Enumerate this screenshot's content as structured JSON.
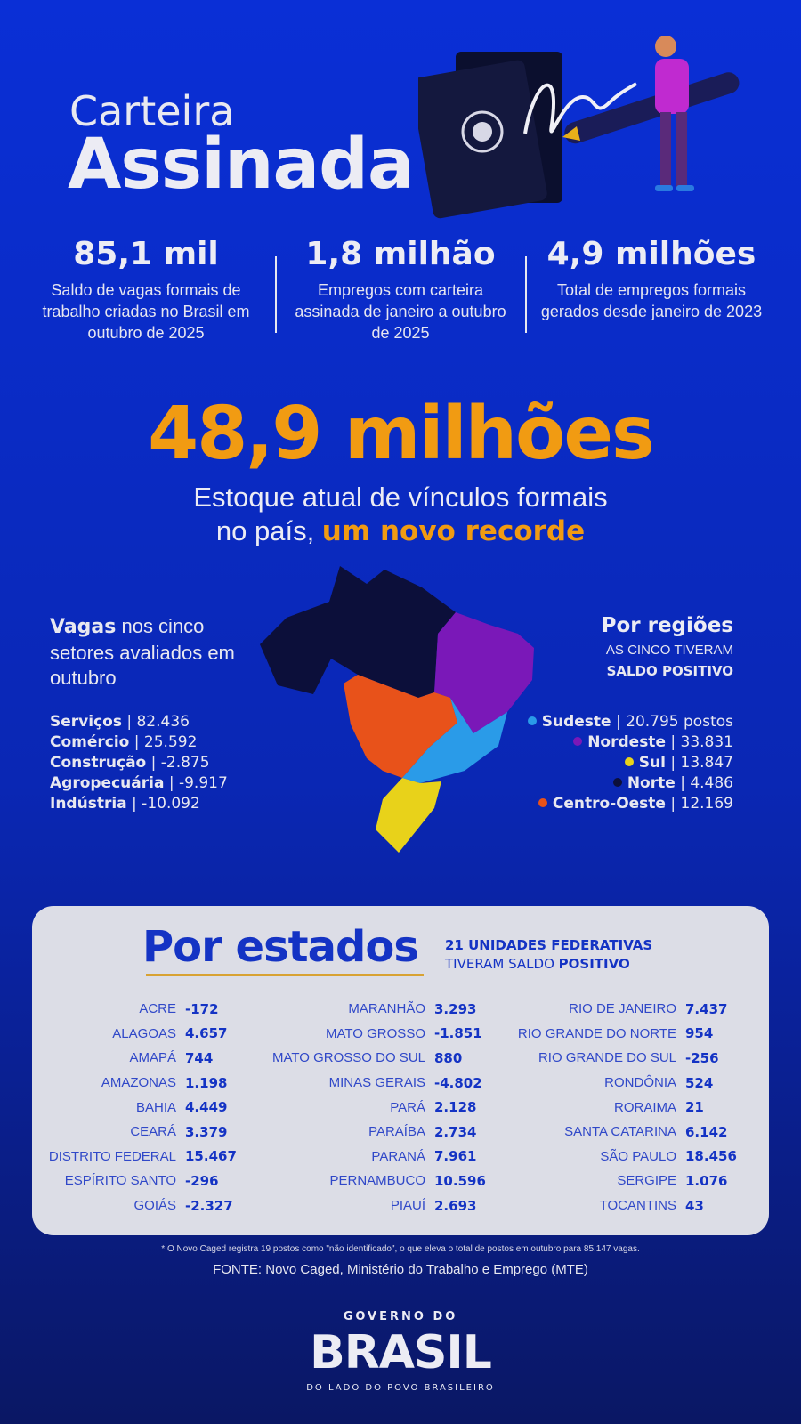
{
  "header": {
    "title_line1": "Carteira",
    "title_line2": "Assinada"
  },
  "stats": [
    {
      "value": "85,1 mil",
      "desc": "Saldo de vagas formais de trabalho criadas no Brasil em outubro de 2025"
    },
    {
      "value": "1,8 milhão",
      "desc": "Empregos com carteira assinada de janeiro a outubro de 2025"
    },
    {
      "value": "4,9 milhões",
      "desc": "Total de empregos formais gerados desde janeiro de 2023"
    }
  ],
  "headline": {
    "value": "48,9 milhões",
    "desc_line1": "Estoque atual de vínculos formais",
    "desc_line2_plain": "no país, ",
    "desc_line2_highlight": "um novo recorde"
  },
  "sectors": {
    "title_bold": "Vagas",
    "title_rest": " nos cinco setores avaliados em outubro",
    "items": [
      {
        "name": "Serviços",
        "value": "| 82.436"
      },
      {
        "name": "Comércio",
        "value": "| 25.592"
      },
      {
        "name": "Construção",
        "value": "| -2.875"
      },
      {
        "name": "Agropecuária",
        "value": "| -9.917"
      },
      {
        "name": "Indústria",
        "value": "| -10.092"
      }
    ]
  },
  "regions": {
    "title": "Por regiões",
    "subtitle1": "AS CINCO TIVERAM",
    "subtitle2": "SALDO POSITIVO",
    "items": [
      {
        "name": "Sudeste",
        "value": "| 20.795 postos",
        "color": "#2a9be8"
      },
      {
        "name": "Nordeste",
        "value": "| 33.831",
        "color": "#7a18b8"
      },
      {
        "name": "Sul",
        "value": "| 13.847",
        "color": "#e8d21a"
      },
      {
        "name": "Norte",
        "value": "| 4.486",
        "color": "#0c0f3a"
      },
      {
        "name": "Centro-Oeste",
        "value": "| 12.169",
        "color": "#e8521a"
      }
    ]
  },
  "states_card": {
    "title": "Por estados",
    "subtitle_line1": "21 UNIDADES FEDERATIVAS",
    "subtitle_line2_plain": "TIVERAM SALDO ",
    "subtitle_line2_bold": "POSITIVO",
    "columns": [
      [
        {
          "name": "ACRE",
          "value": "-172"
        },
        {
          "name": "ALAGOAS",
          "value": "4.657"
        },
        {
          "name": "AMAPÁ",
          "value": "744"
        },
        {
          "name": "AMAZONAS",
          "value": "1.198"
        },
        {
          "name": "BAHIA",
          "value": "4.449"
        },
        {
          "name": "CEARÁ",
          "value": "3.379"
        },
        {
          "name": "DISTRITO FEDERAL",
          "value": "15.467"
        },
        {
          "name": "ESPÍRITO SANTO",
          "value": "-296"
        },
        {
          "name": "GOIÁS",
          "value": "-2.327"
        }
      ],
      [
        {
          "name": "MARANHÃO",
          "value": "3.293"
        },
        {
          "name": "MATO GROSSO",
          "value": "-1.851"
        },
        {
          "name": "MATO GROSSO DO SUL",
          "value": "880"
        },
        {
          "name": "MINAS GERAIS",
          "value": "-4.802"
        },
        {
          "name": "PARÁ",
          "value": "2.128"
        },
        {
          "name": "PARAÍBA",
          "value": "2.734"
        },
        {
          "name": "PARANÁ",
          "value": "7.961"
        },
        {
          "name": "PERNAMBUCO",
          "value": "10.596"
        },
        {
          "name": "PIAUÍ",
          "value": "2.693"
        }
      ],
      [
        {
          "name": "RIO DE JANEIRO",
          "value": "7.437"
        },
        {
          "name": "RIO GRANDE DO NORTE",
          "value": "954"
        },
        {
          "name": "RIO GRANDE DO SUL",
          "value": "-256"
        },
        {
          "name": "RONDÔNIA",
          "value": "524"
        },
        {
          "name": "RORAIMA",
          "value": "21"
        },
        {
          "name": "SANTA CATARINA",
          "value": "6.142"
        },
        {
          "name": "SÃO PAULO",
          "value": "18.456"
        },
        {
          "name": "SERGIPE",
          "value": "1.076"
        },
        {
          "name": "TOCANTINS",
          "value": "43"
        }
      ]
    ]
  },
  "footnote": "* O Novo Caged registra 19 postos como \"não identificado\", o que eleva o total de postos em outubro para 85.147 vagas.",
  "source": "FONTE: Novo Caged, Ministério do Trabalho e Emprego (MTE)",
  "logo": {
    "line1": "GOVERNO DO",
    "line2": "BRASIL",
    "line3": "DO LADO DO POVO BRASILEIRO"
  }
}
